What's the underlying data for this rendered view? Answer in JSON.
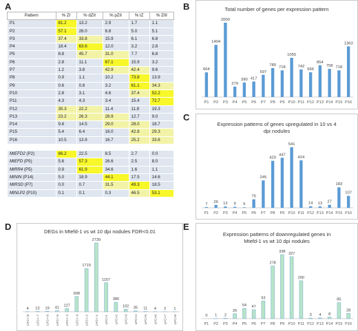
{
  "colors": {
    "yellow": "#f7f72a",
    "lightyellow": "#f3f3a8",
    "bluegray": "#dfe6f0",
    "bar_blue": "#5b9bd5",
    "bar_green": "#b7e4c7",
    "bar_green_edge": "#7fb3d5"
  },
  "panels": {
    "a": "A",
    "b": "B",
    "c": "C",
    "d": "D",
    "e": "E"
  },
  "table_a": {
    "headers": [
      "Pattern",
      "% ZI",
      "% dZII",
      "% pZII",
      "% IZ",
      "% ZIII"
    ],
    "rows": [
      {
        "name": "P1",
        "values": [
          "81.2",
          "13.2",
          "2.9",
          "1.7",
          "1.1"
        ],
        "hl": [
          2,
          0,
          0,
          0,
          0
        ]
      },
      {
        "name": "P2",
        "values": [
          "57.1",
          "26.0",
          "6.8",
          "5.0",
          "5.1"
        ],
        "hl": [
          2,
          0,
          0,
          0,
          0
        ]
      },
      {
        "name": "P3",
        "values": [
          "37.4",
          "33.8",
          "15.9",
          "6.1",
          "6.8"
        ],
        "hl": [
          1,
          1,
          0,
          0,
          0
        ]
      },
      {
        "name": "P4",
        "values": [
          "18.4",
          "63.6",
          "12.0",
          "3.2",
          "2.8"
        ],
        "hl": [
          0,
          2,
          0,
          0,
          0
        ]
      },
      {
        "name": "P5",
        "values": [
          "8.8",
          "45.7",
          "31.0",
          "7.7",
          "6.8"
        ],
        "hl": [
          0,
          1,
          1,
          0,
          0
        ]
      },
      {
        "name": "P6",
        "values": [
          "2.8",
          "11.1",
          "67.1",
          "15.9",
          "3.2"
        ],
        "hl": [
          0,
          0,
          2,
          0,
          0
        ]
      },
      {
        "name": "P7",
        "values": [
          "1.2",
          "3.8",
          "42.9",
          "42.4",
          "9.6"
        ],
        "hl": [
          0,
          0,
          1,
          1,
          0
        ]
      },
      {
        "name": "P8",
        "values": [
          "0.9",
          "1.1",
          "10.2",
          "73.8",
          "13.9"
        ],
        "hl": [
          0,
          0,
          0,
          2,
          0
        ]
      },
      {
        "name": "P9",
        "values": [
          "0.6",
          "0.8",
          "3.2",
          "61.1",
          "34.3"
        ],
        "hl": [
          0,
          0,
          0,
          2,
          1
        ]
      },
      {
        "name": "P10",
        "values": [
          "2.8",
          "3.1",
          "4.6",
          "37.4",
          "52.2"
        ],
        "hl": [
          0,
          0,
          0,
          1,
          2
        ]
      },
      {
        "name": "P11",
        "values": [
          "4.3",
          "4.3",
          "3.4",
          "15.4",
          "72.7"
        ],
        "hl": [
          0,
          0,
          0,
          0,
          2
        ]
      },
      {
        "name": "P12",
        "values": [
          "35.3",
          "22.2",
          "11.4",
          "11.8",
          "19.3"
        ],
        "hl": [
          1,
          1,
          0,
          0,
          0
        ]
      },
      {
        "name": "P13",
        "values": [
          "23.2",
          "26.3",
          "28.9",
          "12.7",
          "9.0"
        ],
        "hl": [
          1,
          1,
          1,
          0,
          0
        ]
      },
      {
        "name": "P14",
        "values": [
          "9.8",
          "14.5",
          "29.0",
          "28.0",
          "18.7"
        ],
        "hl": [
          0,
          0,
          1,
          1,
          0
        ]
      },
      {
        "name": "P15",
        "values": [
          "5.4",
          "6.4",
          "16.0",
          "42.8",
          "29.3"
        ],
        "hl": [
          0,
          0,
          0,
          1,
          1
        ]
      },
      {
        "name": "P16",
        "values": [
          "10.5",
          "13.9",
          "16.7",
          "25.2",
          "33.6"
        ],
        "hl": [
          0,
          0,
          0,
          1,
          1
        ]
      }
    ],
    "genes": [
      {
        "name": "MtEFD2 (P2)",
        "values": [
          "66.2",
          "22.5",
          "8.5",
          "2.7",
          "0.0"
        ],
        "hl": [
          2,
          0,
          0,
          0,
          0
        ]
      },
      {
        "name": "MtEFD (P5)",
        "values": [
          "5.6",
          "57.3",
          "26.6",
          "2.5",
          "8.0"
        ],
        "hl": [
          0,
          2,
          0,
          0,
          0
        ]
      },
      {
        "name": "MtRR4 (P5)",
        "values": [
          "0.9",
          "61.9",
          "34.6",
          "1.6",
          "1.1"
        ],
        "hl": [
          0,
          2,
          0,
          0,
          0
        ]
      },
      {
        "name": "MtNIN (P14)",
        "values": [
          "5.0",
          "18.9",
          "44.1",
          "17.5",
          "14.6"
        ],
        "hl": [
          0,
          0,
          2,
          0,
          0
        ]
      },
      {
        "name": "MtRSD (P7)",
        "values": [
          "0.0",
          "0.7",
          "31.5",
          "49.3",
          "18.5"
        ],
        "hl": [
          0,
          0,
          1,
          2,
          0
        ]
      },
      {
        "name": "MtNLP2 (P10)",
        "values": [
          "0.1",
          "0.1",
          "0.3",
          "46.5",
          "53.1"
        ],
        "hl": [
          0,
          0,
          0,
          1,
          2
        ]
      }
    ]
  },
  "chart_data": [
    {
      "type": "bar",
      "id": "B",
      "title": "Total number of genes per expression pattern",
      "xlabel": "",
      "ylabel": "",
      "ylim": [
        0,
        2000
      ],
      "categories": [
        "P1",
        "P2",
        "P3",
        "P4",
        "P5",
        "P6",
        "P7",
        "P8",
        "P9",
        "P10",
        "P11",
        "P12",
        "P13",
        "P14",
        "P15",
        "P16"
      ],
      "values": [
        664,
        1404,
        2000,
        279,
        390,
        417,
        597,
        780,
        718,
        1055,
        742,
        666,
        854,
        758,
        718,
        1363
      ]
    },
    {
      "type": "bar",
      "id": "C",
      "title": "Expression patterns of genes upregulated in 10 vs 4 dpi nodules",
      "xlabel": "",
      "ylabel": "",
      "ylim": [
        0,
        541
      ],
      "categories": [
        "P1",
        "P2",
        "P3",
        "P4",
        "P5",
        "P6",
        "P7",
        "P8",
        "P9",
        "P10",
        "P11",
        "P12",
        "P13",
        "P14",
        "P15",
        "P16"
      ],
      "values": [
        7,
        26,
        12,
        9,
        5,
        76,
        245,
        420,
        447,
        541,
        424,
        14,
        13,
        27,
        183,
        107
      ]
    },
    {
      "type": "bar",
      "id": "D",
      "title": "DEGs in Mtefd-1 vs wt 10 dpi nodules FDR<0.01",
      "xlabel": "",
      "ylabel": "",
      "ylim": [
        0,
        2739
      ],
      "categories": [
        "LFC<-8",
        "LFC<-7",
        "LFC<-6",
        "LFC<-5",
        "LFC<-4",
        "LFC<-3",
        "LFC<-2",
        "LFC<-1",
        "LFC>1",
        "LFC>2",
        "LFC>3",
        "LFC>4",
        "LFC>5",
        "LFC>6",
        "LFC>7",
        "LFC>8"
      ],
      "values": [
        4,
        13,
        19,
        41,
        127,
        608,
        1719,
        2739,
        1157,
        380,
        102,
        35,
        11,
        4,
        2,
        1
      ]
    },
    {
      "type": "bar",
      "id": "E",
      "title": "Expression patterns of downregulated genes in Mtefd-1 vs wt 10 dpi nodules",
      "xlabel": "",
      "ylabel": "",
      "ylim": [
        0,
        338
      ],
      "categories": [
        "P1",
        "P2",
        "P3",
        "P4",
        "P5",
        "P6",
        "P7",
        "P8",
        "P9",
        "P10",
        "P11",
        "P12",
        "P13",
        "P14",
        "P15",
        "P16"
      ],
      "values": [
        0,
        1,
        2,
        26,
        54,
        47,
        93,
        278,
        338,
        327,
        200,
        3,
        4,
        8,
        85,
        28
      ]
    }
  ]
}
